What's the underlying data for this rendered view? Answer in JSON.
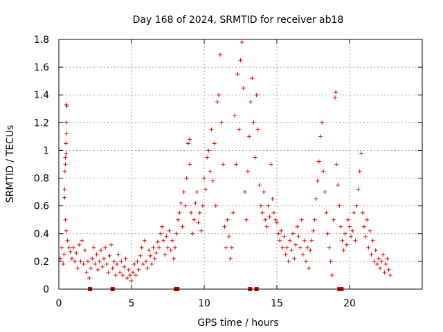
{
  "chart_data": {
    "type": "scatter",
    "title": "Day 168 of 2024, SRMTID for receiver ab18",
    "xlabel": "GPS time / hours",
    "ylabel": "SRMTID / TECUs",
    "xlim": [
      0,
      25
    ],
    "ylim": [
      0,
      1.8
    ],
    "xticks": [
      0,
      5,
      10,
      15,
      20
    ],
    "yticks": [
      0,
      0.2,
      0.4,
      0.6,
      0.8,
      1,
      1.2,
      1.4,
      1.6,
      1.8
    ],
    "ytick_labels": [
      "0",
      "0.2",
      "0.4",
      "0.6",
      "0.8",
      "1",
      "1.2",
      "1.4",
      "1.6",
      "1.8"
    ],
    "grid": true,
    "marker": "+",
    "series": [
      {
        "name": "SRMTID",
        "color": "#dd0000",
        "points": [
          [
            0.1,
            0.22
          ],
          [
            0.2,
            0.3
          ],
          [
            0.3,
            0.18
          ],
          [
            0.35,
            0.25
          ],
          [
            0.4,
            0.72
          ],
          [
            0.45,
            0.9
          ],
          [
            0.5,
            1.33
          ],
          [
            0.55,
            1.32
          ],
          [
            0.5,
            1.2
          ],
          [
            0.52,
            1.12
          ],
          [
            0.48,
            1.05
          ],
          [
            0.5,
            0.98
          ],
          [
            0.45,
            0.95
          ],
          [
            0.42,
            0.85
          ],
          [
            0.4,
            0.66
          ],
          [
            0.45,
            0.5
          ],
          [
            0.5,
            0.42
          ],
          [
            0.6,
            0.35
          ],
          [
            0.7,
            0.3
          ],
          [
            0.8,
            0.27
          ],
          [
            0.9,
            0.22
          ],
          [
            1.0,
            0.3
          ],
          [
            1.1,
            0.2
          ],
          [
            1.2,
            0.26
          ],
          [
            1.3,
            0.15
          ],
          [
            1.4,
            0.32
          ],
          [
            1.5,
            0.2
          ],
          [
            1.6,
            0.35
          ],
          [
            1.7,
            0.18
          ],
          [
            1.8,
            0.28
          ],
          [
            1.9,
            0.12
          ],
          [
            2.0,
            0.2
          ],
          [
            2.1,
            0.08
          ],
          [
            2.2,
            0.15
          ],
          [
            2.3,
            0.22
          ],
          [
            2.4,
            0.3
          ],
          [
            2.5,
            0.18
          ],
          [
            2.6,
            0.25
          ],
          [
            2.7,
            0.14
          ],
          [
            2.8,
            0.2
          ],
          [
            2.9,
            0.28
          ],
          [
            3.0,
            0.16
          ],
          [
            3.1,
            0.22
          ],
          [
            3.2,
            0.3
          ],
          [
            3.3,
            0.18
          ],
          [
            3.4,
            0.12
          ],
          [
            3.5,
            0.24
          ],
          [
            3.6,
            0.32
          ],
          [
            3.7,
            0.15
          ],
          [
            3.8,
            0.2
          ],
          [
            3.9,
            0.1
          ],
          [
            4.0,
            0.18
          ],
          [
            4.1,
            0.25
          ],
          [
            4.2,
            0.12
          ],
          [
            4.3,
            0.2
          ],
          [
            4.4,
            0.1
          ],
          [
            4.5,
            0.16
          ],
          [
            4.6,
            0.22
          ],
          [
            4.7,
            0.08
          ],
          [
            4.8,
            0.14
          ],
          [
            4.9,
            0.1
          ],
          [
            5.0,
            0.06
          ],
          [
            5.1,
            0.12
          ],
          [
            5.2,
            0.18
          ],
          [
            5.3,
            0.1
          ],
          [
            5.4,
            0.2
          ],
          [
            5.5,
            0.14
          ],
          [
            5.6,
            0.24
          ],
          [
            5.7,
            0.3
          ],
          [
            5.8,
            0.18
          ],
          [
            5.9,
            0.35
          ],
          [
            6.0,
            0.2
          ],
          [
            6.1,
            0.15
          ],
          [
            6.2,
            0.28
          ],
          [
            6.3,
            0.24
          ],
          [
            6.4,
            0.18
          ],
          [
            6.5,
            0.3
          ],
          [
            6.6,
            0.22
          ],
          [
            6.7,
            0.26
          ],
          [
            6.8,
            0.34
          ],
          [
            6.9,
            0.3
          ],
          [
            7.0,
            0.4
          ],
          [
            7.1,
            0.45
          ],
          [
            7.2,
            0.35
          ],
          [
            7.3,
            0.25
          ],
          [
            7.4,
            0.38
          ],
          [
            7.5,
            0.3
          ],
          [
            7.6,
            0.42
          ],
          [
            7.7,
            0.28
          ],
          [
            7.8,
            0.35
          ],
          [
            7.9,
            0.22
          ],
          [
            8.0,
            0.3
          ],
          [
            8.1,
            0.4
          ],
          [
            8.2,
            0.5
          ],
          [
            8.3,
            0.55
          ],
          [
            8.4,
            0.62
          ],
          [
            8.5,
            0.45
          ],
          [
            8.6,
            0.7
          ],
          [
            8.7,
            0.6
          ],
          [
            8.8,
            0.8
          ],
          [
            8.9,
            1.05
          ],
          [
            9.0,
            1.08
          ],
          [
            9.0,
            0.9
          ],
          [
            9.1,
            0.55
          ],
          [
            9.2,
            0.4
          ],
          [
            9.3,
            0.5
          ],
          [
            9.4,
            0.62
          ],
          [
            9.5,
            0.7
          ],
          [
            9.6,
            0.48
          ],
          [
            9.7,
            0.55
          ],
          [
            9.8,
            0.42
          ],
          [
            9.9,
            0.6
          ],
          [
            10.0,
            0.8
          ],
          [
            10.1,
            0.72
          ],
          [
            10.2,
            0.95
          ],
          [
            10.3,
            1.0
          ],
          [
            10.4,
            0.85
          ],
          [
            10.5,
            1.15
          ],
          [
            10.6,
            0.78
          ],
          [
            10.7,
            1.05
          ],
          [
            10.8,
            0.6
          ],
          [
            10.9,
            1.35
          ],
          [
            11.0,
            1.4
          ],
          [
            11.1,
            1.69
          ],
          [
            11.2,
            1.2
          ],
          [
            11.3,
            0.9
          ],
          [
            11.4,
            0.45
          ],
          [
            11.5,
            0.3
          ],
          [
            11.6,
            0.5
          ],
          [
            11.7,
            0.38
          ],
          [
            11.8,
            0.22
          ],
          [
            11.9,
            0.3
          ],
          [
            12.0,
            0.55
          ],
          [
            12.1,
            1.25
          ],
          [
            12.2,
            0.9
          ],
          [
            12.3,
            1.55
          ],
          [
            12.4,
            1.15
          ],
          [
            12.5,
            1.65
          ],
          [
            12.6,
            1.78
          ],
          [
            12.7,
            1.45
          ],
          [
            12.8,
            0.7
          ],
          [
            12.9,
            0.5
          ],
          [
            13.0,
            0.85
          ],
          [
            13.1,
            1.1
          ],
          [
            13.2,
            1.35
          ],
          [
            13.3,
            1.52
          ],
          [
            13.4,
            1.2
          ],
          [
            13.5,
            0.95
          ],
          [
            13.6,
            1.4
          ],
          [
            13.7,
            1.15
          ],
          [
            13.8,
            0.75
          ],
          [
            13.9,
            0.6
          ],
          [
            14.0,
            0.55
          ],
          [
            14.1,
            0.7
          ],
          [
            14.2,
            0.5
          ],
          [
            14.3,
            0.45
          ],
          [
            14.4,
            0.6
          ],
          [
            14.5,
            0.52
          ],
          [
            14.6,
            0.9
          ],
          [
            14.7,
            0.65
          ],
          [
            14.8,
            0.55
          ],
          [
            14.9,
            0.5
          ],
          [
            15.0,
            0.48
          ],
          [
            15.1,
            0.4
          ],
          [
            15.2,
            0.35
          ],
          [
            15.3,
            0.42
          ],
          [
            15.4,
            0.3
          ],
          [
            15.5,
            0.38
          ],
          [
            15.6,
            0.25
          ],
          [
            15.7,
            0.3
          ],
          [
            15.8,
            0.2
          ],
          [
            15.9,
            0.35
          ],
          [
            16.0,
            0.28
          ],
          [
            16.1,
            0.4
          ],
          [
            16.2,
            0.22
          ],
          [
            16.3,
            0.32
          ],
          [
            16.4,
            0.45
          ],
          [
            16.5,
            0.38
          ],
          [
            16.6,
            0.3
          ],
          [
            16.7,
            0.5
          ],
          [
            16.8,
            0.25
          ],
          [
            16.9,
            0.35
          ],
          [
            17.0,
            0.2
          ],
          [
            17.1,
            0.3
          ],
          [
            17.2,
            0.15
          ],
          [
            17.3,
            0.28
          ],
          [
            17.4,
            0.35
          ],
          [
            17.5,
            0.42
          ],
          [
            17.6,
            0.5
          ],
          [
            17.7,
            0.65
          ],
          [
            17.8,
            0.78
          ],
          [
            17.9,
            0.92
          ],
          [
            18.0,
            1.1
          ],
          [
            18.1,
            1.2
          ],
          [
            18.2,
            0.85
          ],
          [
            18.3,
            0.7
          ],
          [
            18.4,
            0.55
          ],
          [
            18.5,
            0.4
          ],
          [
            18.6,
            0.3
          ],
          [
            18.7,
            0.2
          ],
          [
            18.8,
            0.1
          ],
          [
            18.9,
            0.5
          ],
          [
            19.0,
            1.38
          ],
          [
            19.05,
            1.42
          ],
          [
            19.1,
            0.9
          ],
          [
            19.2,
            0.75
          ],
          [
            19.3,
            0.6
          ],
          [
            19.4,
            0.45
          ],
          [
            19.5,
            0.35
          ],
          [
            19.6,
            0.28
          ],
          [
            19.7,
            0.4
          ],
          [
            19.8,
            0.32
          ],
          [
            19.9,
            0.5
          ],
          [
            20.0,
            0.45
          ],
          [
            20.1,
            0.38
          ],
          [
            20.2,
            0.42
          ],
          [
            20.3,
            0.55
          ],
          [
            20.4,
            0.35
          ],
          [
            20.5,
            0.6
          ],
          [
            20.6,
            0.72
          ],
          [
            20.7,
            0.85
          ],
          [
            20.8,
            0.98
          ],
          [
            20.9,
            0.55
          ],
          [
            21.0,
            0.45
          ],
          [
            21.1,
            0.38
          ],
          [
            21.2,
            0.5
          ],
          [
            21.3,
            0.3
          ],
          [
            21.4,
            0.42
          ],
          [
            21.5,
            0.25
          ],
          [
            21.6,
            0.35
          ],
          [
            21.7,
            0.2
          ],
          [
            21.8,
            0.28
          ],
          [
            21.9,
            0.18
          ],
          [
            22.0,
            0.22
          ],
          [
            22.1,
            0.15
          ],
          [
            22.2,
            0.2
          ],
          [
            22.3,
            0.25
          ],
          [
            22.4,
            0.12
          ],
          [
            22.5,
            0.18
          ],
          [
            22.6,
            0.22
          ],
          [
            22.7,
            0.14
          ],
          [
            22.8,
            0.1
          ]
        ]
      }
    ],
    "baseline_markers": [
      2.15,
      3.7,
      8.05,
      8.15,
      13.15,
      13.6,
      19.3,
      19.45
    ]
  }
}
